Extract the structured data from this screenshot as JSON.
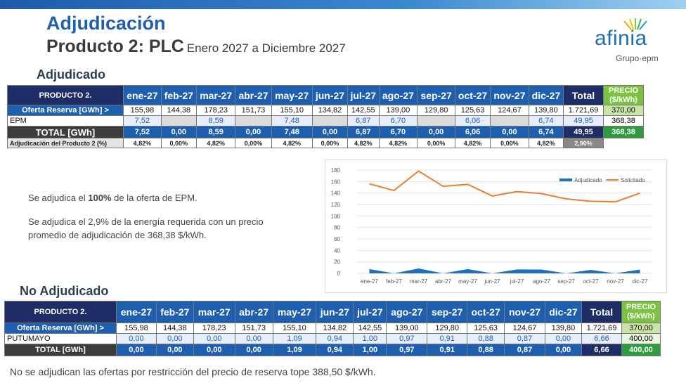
{
  "header": {
    "title": "Adjudicación",
    "subtitle": "Producto 2: PLC",
    "period": "Enero 2027 a Diciembre 2027"
  },
  "logo": {
    "word": "afinia",
    "sub": "Grupo·epm"
  },
  "months": [
    "ene-27",
    "feb-27",
    "mar-27",
    "abr-27",
    "may-27",
    "jun-27",
    "jul-27",
    "ago-27",
    "sep-27",
    "oct-27",
    "nov-27",
    "dic-27"
  ],
  "adjudicado": {
    "section": "Adjudicado",
    "header_label": "PRODUCTO 2.",
    "total_label": "Total",
    "precio_label": "PRECIO ($/kWh)",
    "oferta": {
      "label": "Oferta Reserva [GWh] >",
      "values": [
        "155,98",
        "144,38",
        "178,23",
        "151,73",
        "155,10",
        "134,82",
        "142,55",
        "139,00",
        "129,80",
        "125,63",
        "124,67",
        "139,80"
      ],
      "total": "1.721,69",
      "precio": "370,00"
    },
    "epm": {
      "label": "EPM",
      "values": [
        "7,52",
        "",
        "8,59",
        "",
        "7,48",
        "",
        "6,87",
        "6,70",
        "",
        "6,06",
        "",
        "6,74"
      ],
      "total": "49,95",
      "precio": "368,38"
    },
    "total_row": {
      "label": "TOTAL [GWh]",
      "values": [
        "7,52",
        "0,00",
        "8,59",
        "0,00",
        "7,48",
        "0,00",
        "6,87",
        "6,70",
        "0,00",
        "6,06",
        "0,00",
        "6,74"
      ],
      "total": "49,95",
      "precio": "368,38"
    },
    "pct": {
      "label": "Adjudicación del Producto 2 (%)",
      "values": [
        "4,82%",
        "0,00%",
        "4,82%",
        "0,00%",
        "4,82%",
        "0,00%",
        "4,82%",
        "4,82%",
        "0,00%",
        "4,82%",
        "0,00%",
        "4,82%"
      ],
      "total": "2,90%"
    }
  },
  "notes": {
    "line1_pre": "Se adjudica el ",
    "line1_bold": "100%",
    "line1_post": " de la oferta de EPM.",
    "line2": "Se adjudica el 2,9% de la energía requerida con un precio",
    "line3": "promedio de adjudicación de 368,38 $/kWh."
  },
  "chart_data": {
    "type": "area",
    "categories": [
      "ene-27",
      "feb-27",
      "mar-27",
      "abr-27",
      "may-27",
      "jun-27",
      "jul-27",
      "ago-27",
      "sep-27",
      "oct-27",
      "nov-27",
      "dic-27"
    ],
    "ylim": [
      0,
      180
    ],
    "yticks": [
      "0",
      "20",
      "40",
      "60",
      "80",
      "100",
      "120",
      "140",
      "160",
      "180"
    ],
    "legend_position": "top-right",
    "series": [
      {
        "name": "Adjudicado",
        "type": "area",
        "color": "#1f6fc2",
        "values": [
          7.52,
          0,
          8.59,
          0,
          7.48,
          0,
          6.87,
          6.7,
          0,
          6.06,
          0,
          6.74
        ]
      },
      {
        "name": "Solicitado",
        "type": "line",
        "color": "#ed7d31",
        "values": [
          155.98,
          144.38,
          178.23,
          151.73,
          155.1,
          134.82,
          142.55,
          139.0,
          129.8,
          125.63,
          124.67,
          139.8
        ]
      }
    ]
  },
  "no_adjudicado": {
    "section": "No Adjudicado",
    "header_label": "PRODUCTO 2.",
    "total_label": "Total",
    "precio_label": "PRECIO ($/kWh)",
    "oferta": {
      "label": "Oferta Reserva [GWh] >",
      "values": [
        "155,98",
        "144,38",
        "178,23",
        "151,73",
        "155,10",
        "134,82",
        "142,55",
        "139,00",
        "129,80",
        "125,63",
        "124,67",
        "139,80"
      ],
      "total": "1.721,69",
      "precio": "370,00"
    },
    "putumayo": {
      "label": "PUTUMAYO",
      "values": [
        "0,00",
        "0,00",
        "0,00",
        "0,00",
        "1,09",
        "0,94",
        "1,00",
        "0,97",
        "0,91",
        "0,88",
        "0,87",
        "0,00"
      ],
      "total": "6,66",
      "precio": "400,00"
    },
    "total_row": {
      "label": "TOTAL [GWh]",
      "values": [
        "0,00",
        "0,00",
        "0,00",
        "0,00",
        "1,09",
        "0,94",
        "1,00",
        "0,97",
        "0,91",
        "0,88",
        "0,87",
        "0,00"
      ],
      "total": "6,66",
      "precio": "400,00"
    }
  },
  "footer": "No se adjudican las ofertas por restricción del precio de reserva tope 388,50 $/kWh."
}
